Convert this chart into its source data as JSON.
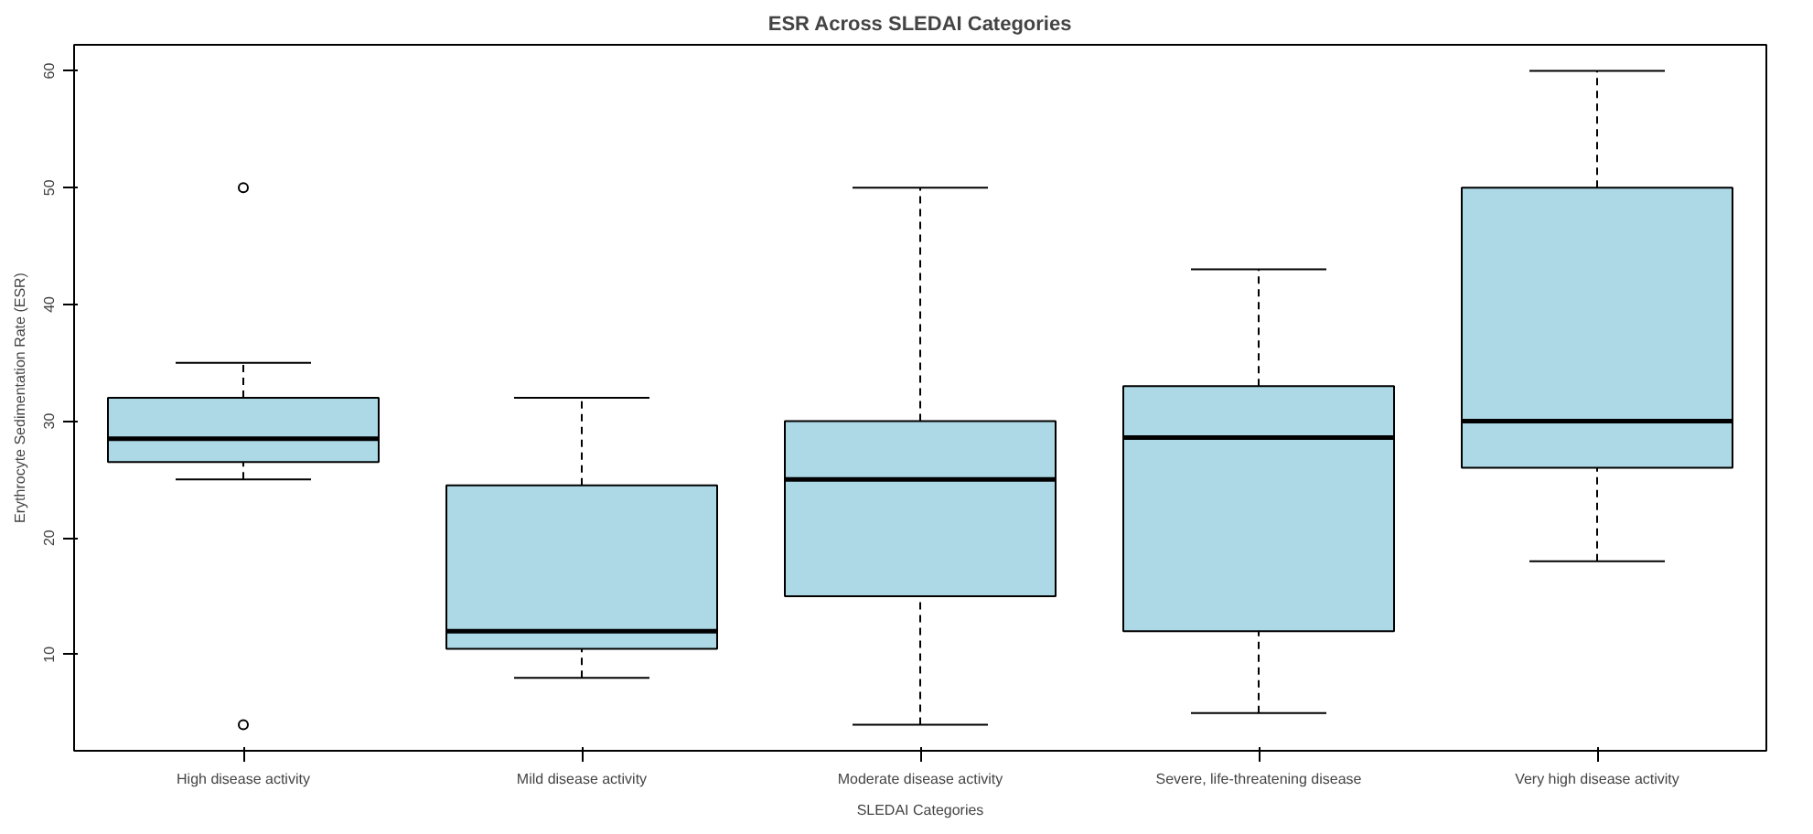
{
  "chart_data": {
    "type": "box",
    "title": "ESR Across SLEDAI Categories",
    "xlabel": "SLEDAI Categories",
    "ylabel": "Erythrocyte Sedimentation Rate (ESR)",
    "categories": [
      "High disease activity",
      "Mild disease activity",
      "Moderate disease activity",
      "Severe, life-threatening disease",
      "Very high disease activity"
    ],
    "series": [
      {
        "color": "#add8e6",
        "boxes": [
          {
            "low": 25,
            "q1": 26.5,
            "median": 28.5,
            "q3": 32,
            "high": 35,
            "outliers": [
              50,
              4
            ]
          },
          {
            "low": 8,
            "q1": 10.5,
            "median": 12,
            "q3": 24.5,
            "high": 32
          },
          {
            "low": 4,
            "q1": 15,
            "median": 25,
            "q3": 30,
            "high": 50
          },
          {
            "low": 5,
            "q1": 12,
            "median": 28.6,
            "q3": 33,
            "high": 43
          },
          {
            "low": 18,
            "q1": 26,
            "median": 30,
            "q3": 50,
            "high": 60
          }
        ]
      }
    ],
    "ylim": [
      1.76,
      62.24
    ],
    "yticks": [
      10,
      20,
      30,
      40,
      50,
      60
    ]
  }
}
